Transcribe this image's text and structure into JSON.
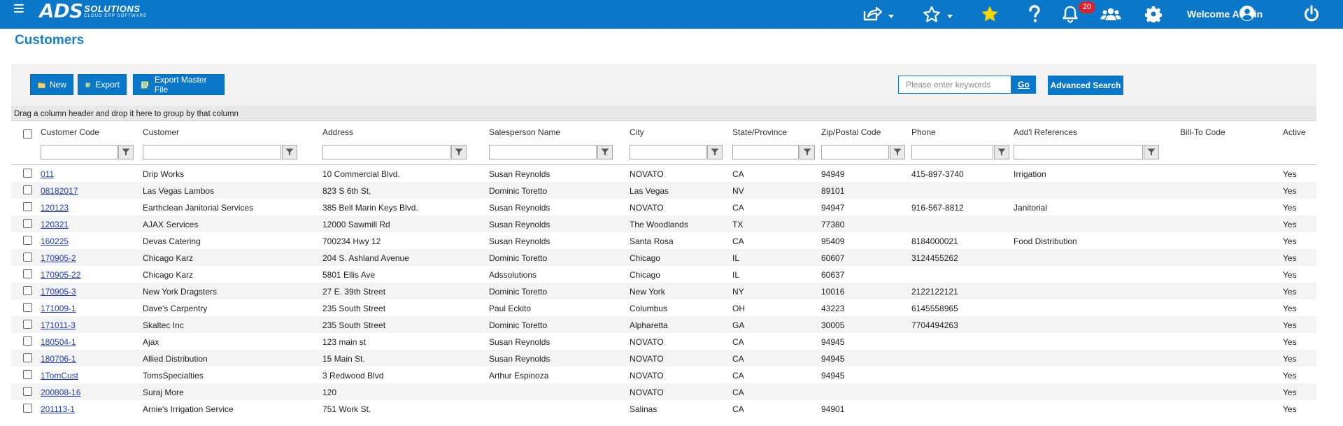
{
  "app": {
    "logo_main": "ADS",
    "logo_brand": "SOLUTIONS",
    "logo_sub": "CLOUD ERP SOFTWARE",
    "notification_count": "20",
    "welcome": "Welcome Admin",
    "colors": {
      "primary": "#0a77c9",
      "badge": "#d9232d",
      "link": "#1f3dbd",
      "title": "#1a7fc6",
      "favorite_star": "#f5d600"
    }
  },
  "topbar_icons": [
    "menu-icon",
    "share-icon",
    "star-outline-icon",
    "star-filled-icon",
    "help-icon",
    "bell-icon",
    "users-icon",
    "gear-icon",
    "user-circle-icon",
    "power-icon"
  ],
  "page": {
    "title": "Customers"
  },
  "toolbar": {
    "new_label": "New",
    "export_label": "Export",
    "export_master_label": "Export Master File",
    "search_placeholder": "Please enter keywords",
    "search_value": "",
    "go_label": "Go",
    "advanced_label": "Advanced Search"
  },
  "grid": {
    "group_hint": "Drag a column header and drop it here to group by that column",
    "columns": [
      "Customer Code",
      "Customer",
      "Address",
      "Salesperson Name",
      "City",
      "State/Province",
      "Zip/Postal Code",
      "Phone",
      "Add'l References",
      "Bill-To Code",
      "Active"
    ],
    "rows": [
      [
        "011",
        "Drip Works",
        "10 Commercial Blvd.",
        "Susan Reynolds",
        "NOVATO",
        "CA",
        "94949",
        "415-897-3740",
        "Irrigation",
        "",
        "Yes"
      ],
      [
        "08182017",
        "Las Vegas Lambos",
        " 823 S 6th St,",
        "Dominic Toretto",
        "Las Vegas",
        "NV",
        "89101",
        "",
        "",
        "",
        "Yes"
      ],
      [
        "120123",
        "Earthclean Janitorial Services",
        "385 Bell Marin Keys Blvd.",
        "Susan Reynolds",
        "NOVATO",
        "CA",
        "94947",
        "916-567-8812",
        "Janitorial",
        "",
        "Yes"
      ],
      [
        "120321",
        "AJAX Services",
        "12000 Sawmill Rd",
        "Susan Reynolds",
        "The Woodlands",
        "TX",
        "77380",
        "",
        "",
        "",
        "Yes"
      ],
      [
        "160225",
        "Devas Catering",
        "700234 Hwy 12",
        "Susan Reynolds",
        "Santa Rosa",
        "CA",
        "95409",
        "8184000021",
        "Food Distribution",
        "",
        "Yes"
      ],
      [
        "170905-2",
        "Chicago Karz",
        "204 S. Ashland Avenue",
        "Dominic Toretto",
        "Chicago",
        "IL",
        "60607",
        "3124455262",
        "",
        "",
        "Yes"
      ],
      [
        "170905-22",
        "Chicago Karz",
        "5801 Ellis Ave",
        "Adssolutions",
        "Chicago",
        "IL",
        "60637",
        "",
        "",
        "",
        "Yes"
      ],
      [
        "170905-3",
        "New York Dragsters",
        "27 E. 39th Street",
        "Dominic Toretto",
        "New York",
        "NY",
        "10016",
        "2122122121",
        "",
        "",
        "Yes"
      ],
      [
        "171009-1",
        "Dave's Carpentry",
        "235 South Street",
        "Paul Eckito",
        "Columbus",
        "OH",
        "43223",
        "6145558965",
        "",
        "",
        "Yes"
      ],
      [
        "171011-3",
        "Skaltec Inc",
        "235 South Street",
        "Dominic Toretto",
        "Alpharetta",
        "GA",
        "30005",
        "7704494263",
        "",
        "",
        "Yes"
      ],
      [
        "180504-1",
        "Ajax",
        "123 main st",
        "Susan Reynolds",
        "NOVATO",
        "CA",
        "94945",
        "",
        "",
        "",
        "Yes"
      ],
      [
        "180706-1",
        "Allied Distribution",
        "15 Main St.",
        "Susan Reynolds",
        "NOVATO",
        "CA",
        "94945",
        "",
        "",
        "",
        "Yes"
      ],
      [
        "1TomCust",
        "TomsSpecialties",
        "3 Redwood Blvd",
        "Arthur Espinoza",
        "NOVATO",
        "CA",
        "94945",
        "",
        "",
        "",
        "Yes"
      ],
      [
        "200808-16",
        "Suraj More",
        "120",
        "",
        "NOVATO",
        "CA",
        "",
        "",
        "",
        "",
        "Yes"
      ],
      [
        "201113-1",
        "Arnie's Irrigation Service",
        "751 Work St.",
        "",
        "Salinas",
        "CA",
        "94901",
        "",
        "",
        "",
        "Yes"
      ]
    ]
  }
}
